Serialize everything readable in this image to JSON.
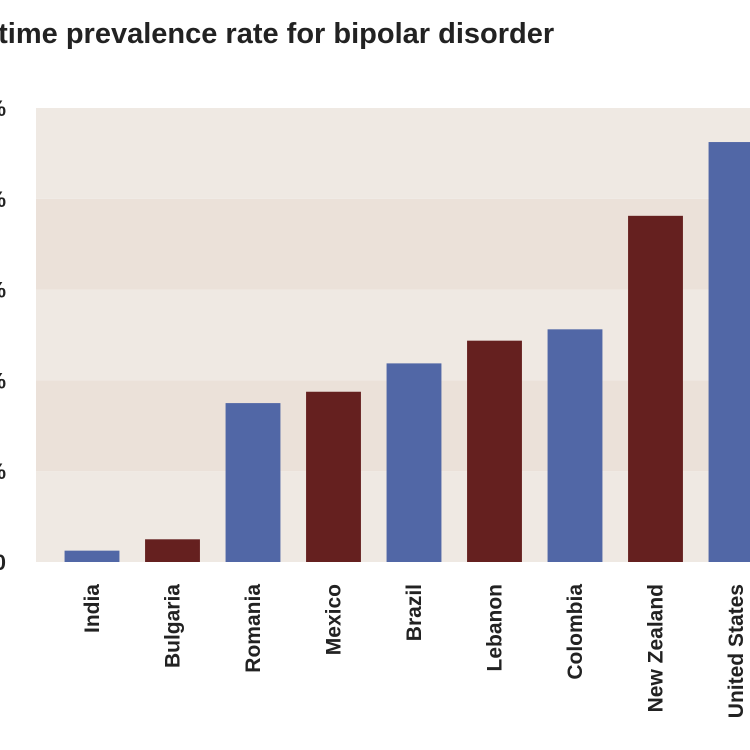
{
  "chart_data": {
    "type": "bar",
    "title": "etime prevalence rate for bipolar disorder",
    "categories": [
      "India",
      "Bulgaria",
      "Romania",
      "Mexico",
      "Brazil",
      "Lebanon",
      "Colombia",
      "New Zealand",
      "United States"
    ],
    "values": [
      0.1,
      0.2,
      1.4,
      1.5,
      1.75,
      1.95,
      2.05,
      3.05,
      3.7
    ],
    "bar_colors": [
      "#5167a6",
      "#65201f",
      "#5167a6",
      "#65201f",
      "#5167a6",
      "#65201f",
      "#5167a6",
      "#65201f",
      "#5167a6"
    ],
    "yticks": [
      "0",
      "%",
      "%",
      "%",
      "%",
      "%"
    ],
    "ylim": [
      0,
      4
    ],
    "band_colors": [
      "#efe9e3",
      "#ebe1d9"
    ],
    "grid": false,
    "legend": "none"
  }
}
